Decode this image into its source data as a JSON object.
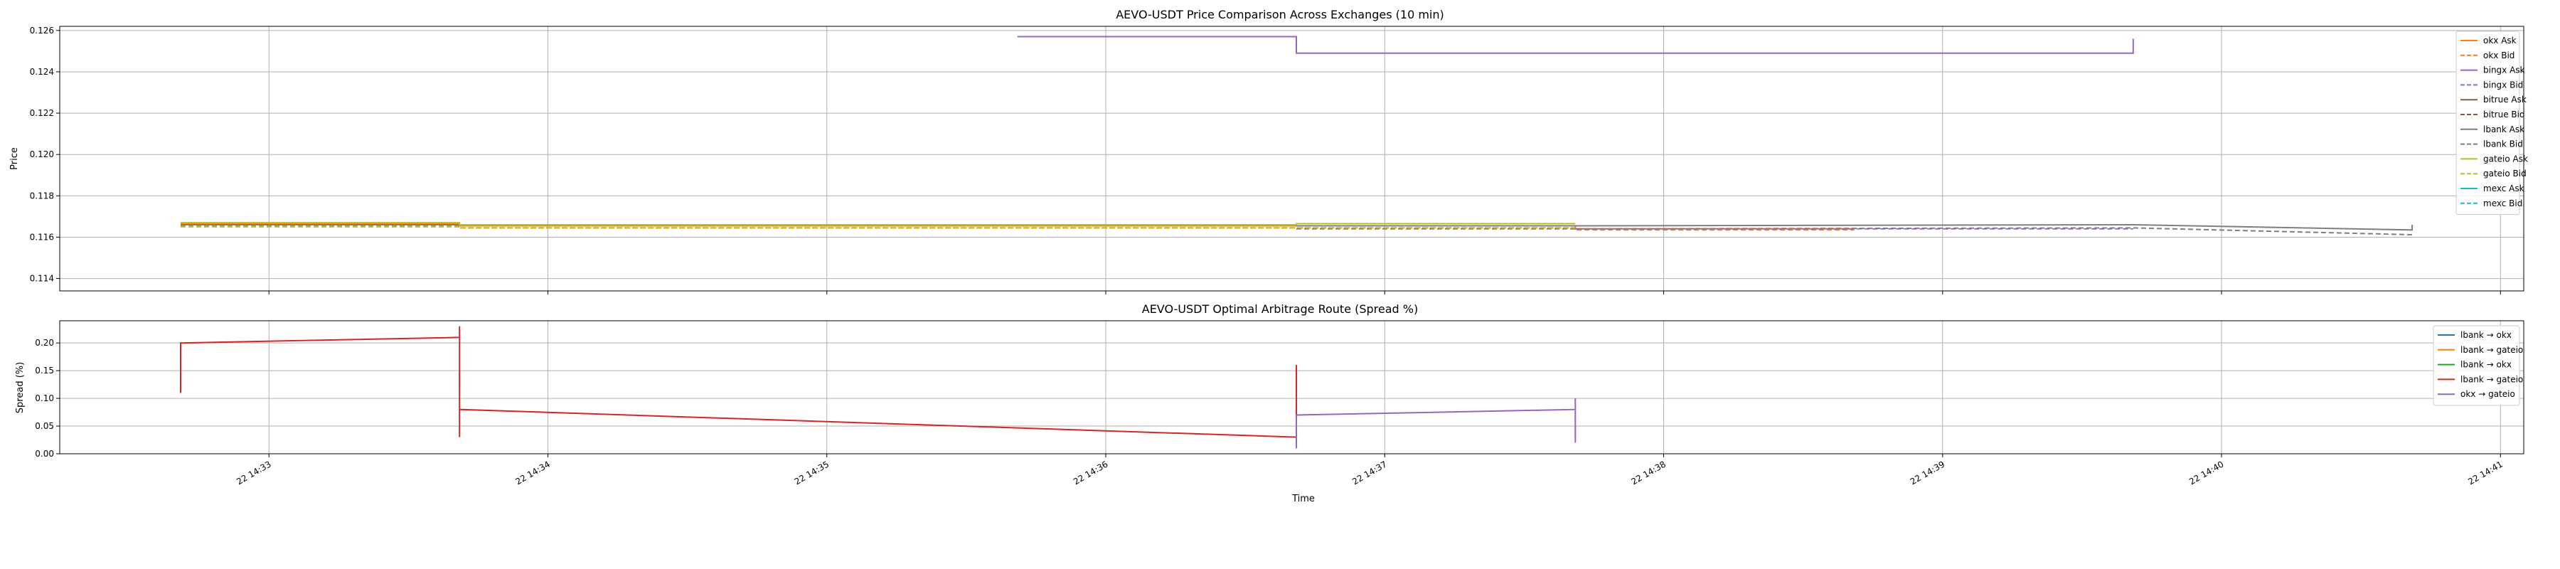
{
  "colors": {
    "okx": "#ff7f0e",
    "bingx": "#9467bd",
    "bitrue": "#8c564b",
    "lbank": "#7f7f7f",
    "gateio": "#bcbd22",
    "mexc": "#17becf",
    "route_lbank_okx_a": "#1f77b4",
    "route_lbank_gateio_a": "#ff7f0e",
    "route_lbank_okx_b": "#2ca02c",
    "route_lbank_gateio_b": "#d62728",
    "route_okx_gateio": "#9467bd"
  },
  "chart_data": [
    {
      "type": "line",
      "title": "AEVO-USDT Price Comparison Across Exchanges (10 min)",
      "xlabel": "",
      "ylabel": "Price",
      "ylim": [
        0.1134,
        0.1262
      ],
      "yticks": [
        "0.114",
        "0.116",
        "0.118",
        "0.120",
        "0.122",
        "0.124",
        "0.126"
      ],
      "xlim": [
        "14:32:15",
        "14:41:05"
      ],
      "grid": true,
      "legend_position": "top-right",
      "series": [
        {
          "name": "okx Ask",
          "style": "solid",
          "color_key": "okx",
          "points": [
            [
              "14:32:41",
              0.11665
            ],
            [
              "14:33:41",
              0.11665
            ],
            [
              "14:33:41",
              0.11655
            ],
            [
              "14:37:41",
              0.11655
            ],
            [
              "14:37:41",
              0.1164
            ],
            [
              "14:38:41",
              0.1164
            ]
          ]
        },
        {
          "name": "okx Bid",
          "style": "dashed",
          "color_key": "okx",
          "points": [
            [
              "14:32:41",
              0.11655
            ],
            [
              "14:33:41",
              0.11655
            ],
            [
              "14:33:41",
              0.11645
            ],
            [
              "14:37:41",
              0.11645
            ],
            [
              "14:37:41",
              0.11635
            ],
            [
              "14:38:41",
              0.11635
            ]
          ]
        },
        {
          "name": "bingx Ask",
          "style": "solid",
          "color_key": "bingx",
          "points": [
            [
              "14:35:41",
              0.1257
            ],
            [
              "14:36:41",
              0.1257
            ],
            [
              "14:36:41",
              0.1249
            ],
            [
              "14:39:41",
              0.1249
            ],
            [
              "14:39:41",
              0.1256
            ]
          ]
        },
        {
          "name": "bingx Bid",
          "style": "dashed",
          "color_key": "bingx",
          "points": [
            [
              "14:37:41",
              0.1164
            ],
            [
              "14:39:41",
              0.1164
            ]
          ]
        },
        {
          "name": "bitrue Ask",
          "style": "solid",
          "color_key": "bitrue",
          "points": []
        },
        {
          "name": "bitrue Bid",
          "style": "dashed",
          "color_key": "bitrue",
          "points": []
        },
        {
          "name": "lbank Ask",
          "style": "solid",
          "color_key": "lbank",
          "points": [
            [
              "14:32:41",
              0.1166
            ],
            [
              "14:36:41",
              0.1166
            ],
            [
              "14:36:41",
              0.11655
            ],
            [
              "14:37:41",
              0.11655
            ],
            [
              "14:39:41",
              0.1166
            ],
            [
              "14:40:41",
              0.11635
            ],
            [
              "14:40:41",
              0.1166
            ]
          ]
        },
        {
          "name": "lbank Bid",
          "style": "dashed",
          "color_key": "lbank",
          "points": [
            [
              "14:36:41",
              0.1164
            ],
            [
              "14:37:41",
              0.1164
            ],
            [
              "14:39:41",
              0.11645
            ],
            [
              "14:40:41",
              0.11612
            ]
          ]
        },
        {
          "name": "gateio Ask",
          "style": "solid",
          "color_key": "gateio",
          "points": [
            [
              "14:32:41",
              0.1167
            ],
            [
              "14:33:41",
              0.1167
            ],
            [
              "14:33:41",
              0.1166
            ],
            [
              "14:36:41",
              0.1166
            ],
            [
              "14:36:41",
              0.11665
            ],
            [
              "14:37:41",
              0.11665
            ]
          ]
        },
        {
          "name": "gateio Bid",
          "style": "dashed",
          "color_key": "gateio",
          "points": [
            [
              "14:32:41",
              0.1165
            ],
            [
              "14:33:41",
              0.1165
            ],
            [
              "14:33:41",
              0.11645
            ],
            [
              "14:37:41",
              0.11645
            ]
          ]
        },
        {
          "name": "mexc Ask",
          "style": "solid",
          "color_key": "mexc",
          "points": []
        },
        {
          "name": "mexc Bid",
          "style": "dashed",
          "color_key": "mexc",
          "points": []
        }
      ]
    },
    {
      "type": "line",
      "title": "AEVO-USDT Optimal Arbitrage Route (Spread %)",
      "xlabel": "Time",
      "ylabel": "Spread (%)",
      "ylim": [
        0.0,
        0.24
      ],
      "yticks": [
        "0.00",
        "0.05",
        "0.10",
        "0.15",
        "0.20"
      ],
      "xlim": [
        "14:32:15",
        "14:41:05"
      ],
      "xticks": [
        {
          "t": "14:33:00",
          "label": "22 14:33"
        },
        {
          "t": "14:34:00",
          "label": "22 14:34"
        },
        {
          "t": "14:35:00",
          "label": "22 14:35"
        },
        {
          "t": "14:36:00",
          "label": "22 14:36"
        },
        {
          "t": "14:37:00",
          "label": "22 14:37"
        },
        {
          "t": "14:38:00",
          "label": "22 14:38"
        },
        {
          "t": "14:39:00",
          "label": "22 14:39"
        },
        {
          "t": "14:40:00",
          "label": "22 14:40"
        },
        {
          "t": "14:41:00",
          "label": "22 14:41"
        }
      ],
      "grid": true,
      "legend_position": "top-right",
      "series": [
        {
          "name": "lbank → okx",
          "color_key": "route_lbank_okx_a",
          "points": [
            [
              "14:32:41",
              0.12
            ],
            [
              "14:32:41",
              0.11
            ]
          ]
        },
        {
          "name": "lbank → gateio",
          "color_key": "route_lbank_gateio_a",
          "points": [
            [
              "14:33:41",
              0.15
            ],
            [
              "14:33:41",
              0.12
            ]
          ]
        },
        {
          "name": "lbank → okx",
          "color_key": "route_lbank_okx_b",
          "points": [
            [
              "14:32:41",
              0.13
            ],
            [
              "14:32:41",
              0.11
            ]
          ]
        },
        {
          "name": "lbank → gateio",
          "color_key": "route_lbank_gateio_b",
          "points": [
            [
              "14:32:41",
              0.11
            ],
            [
              "14:32:41",
              0.2
            ],
            [
              "14:33:41",
              0.21
            ],
            [
              "14:33:41",
              0.23
            ],
            [
              "14:33:41",
              0.03
            ],
            [
              "14:33:41",
              0.08
            ],
            [
              "14:36:41",
              0.03
            ],
            [
              "14:36:41",
              0.16
            ],
            [
              "14:36:41",
              0.01
            ]
          ]
        },
        {
          "name": "okx → gateio",
          "color_key": "route_okx_gateio",
          "points": [
            [
              "14:36:41",
              0.01
            ],
            [
              "14:36:41",
              0.07
            ],
            [
              "14:37:41",
              0.08
            ],
            [
              "14:37:41",
              0.1
            ],
            [
              "14:37:41",
              0.02
            ]
          ]
        }
      ]
    }
  ]
}
